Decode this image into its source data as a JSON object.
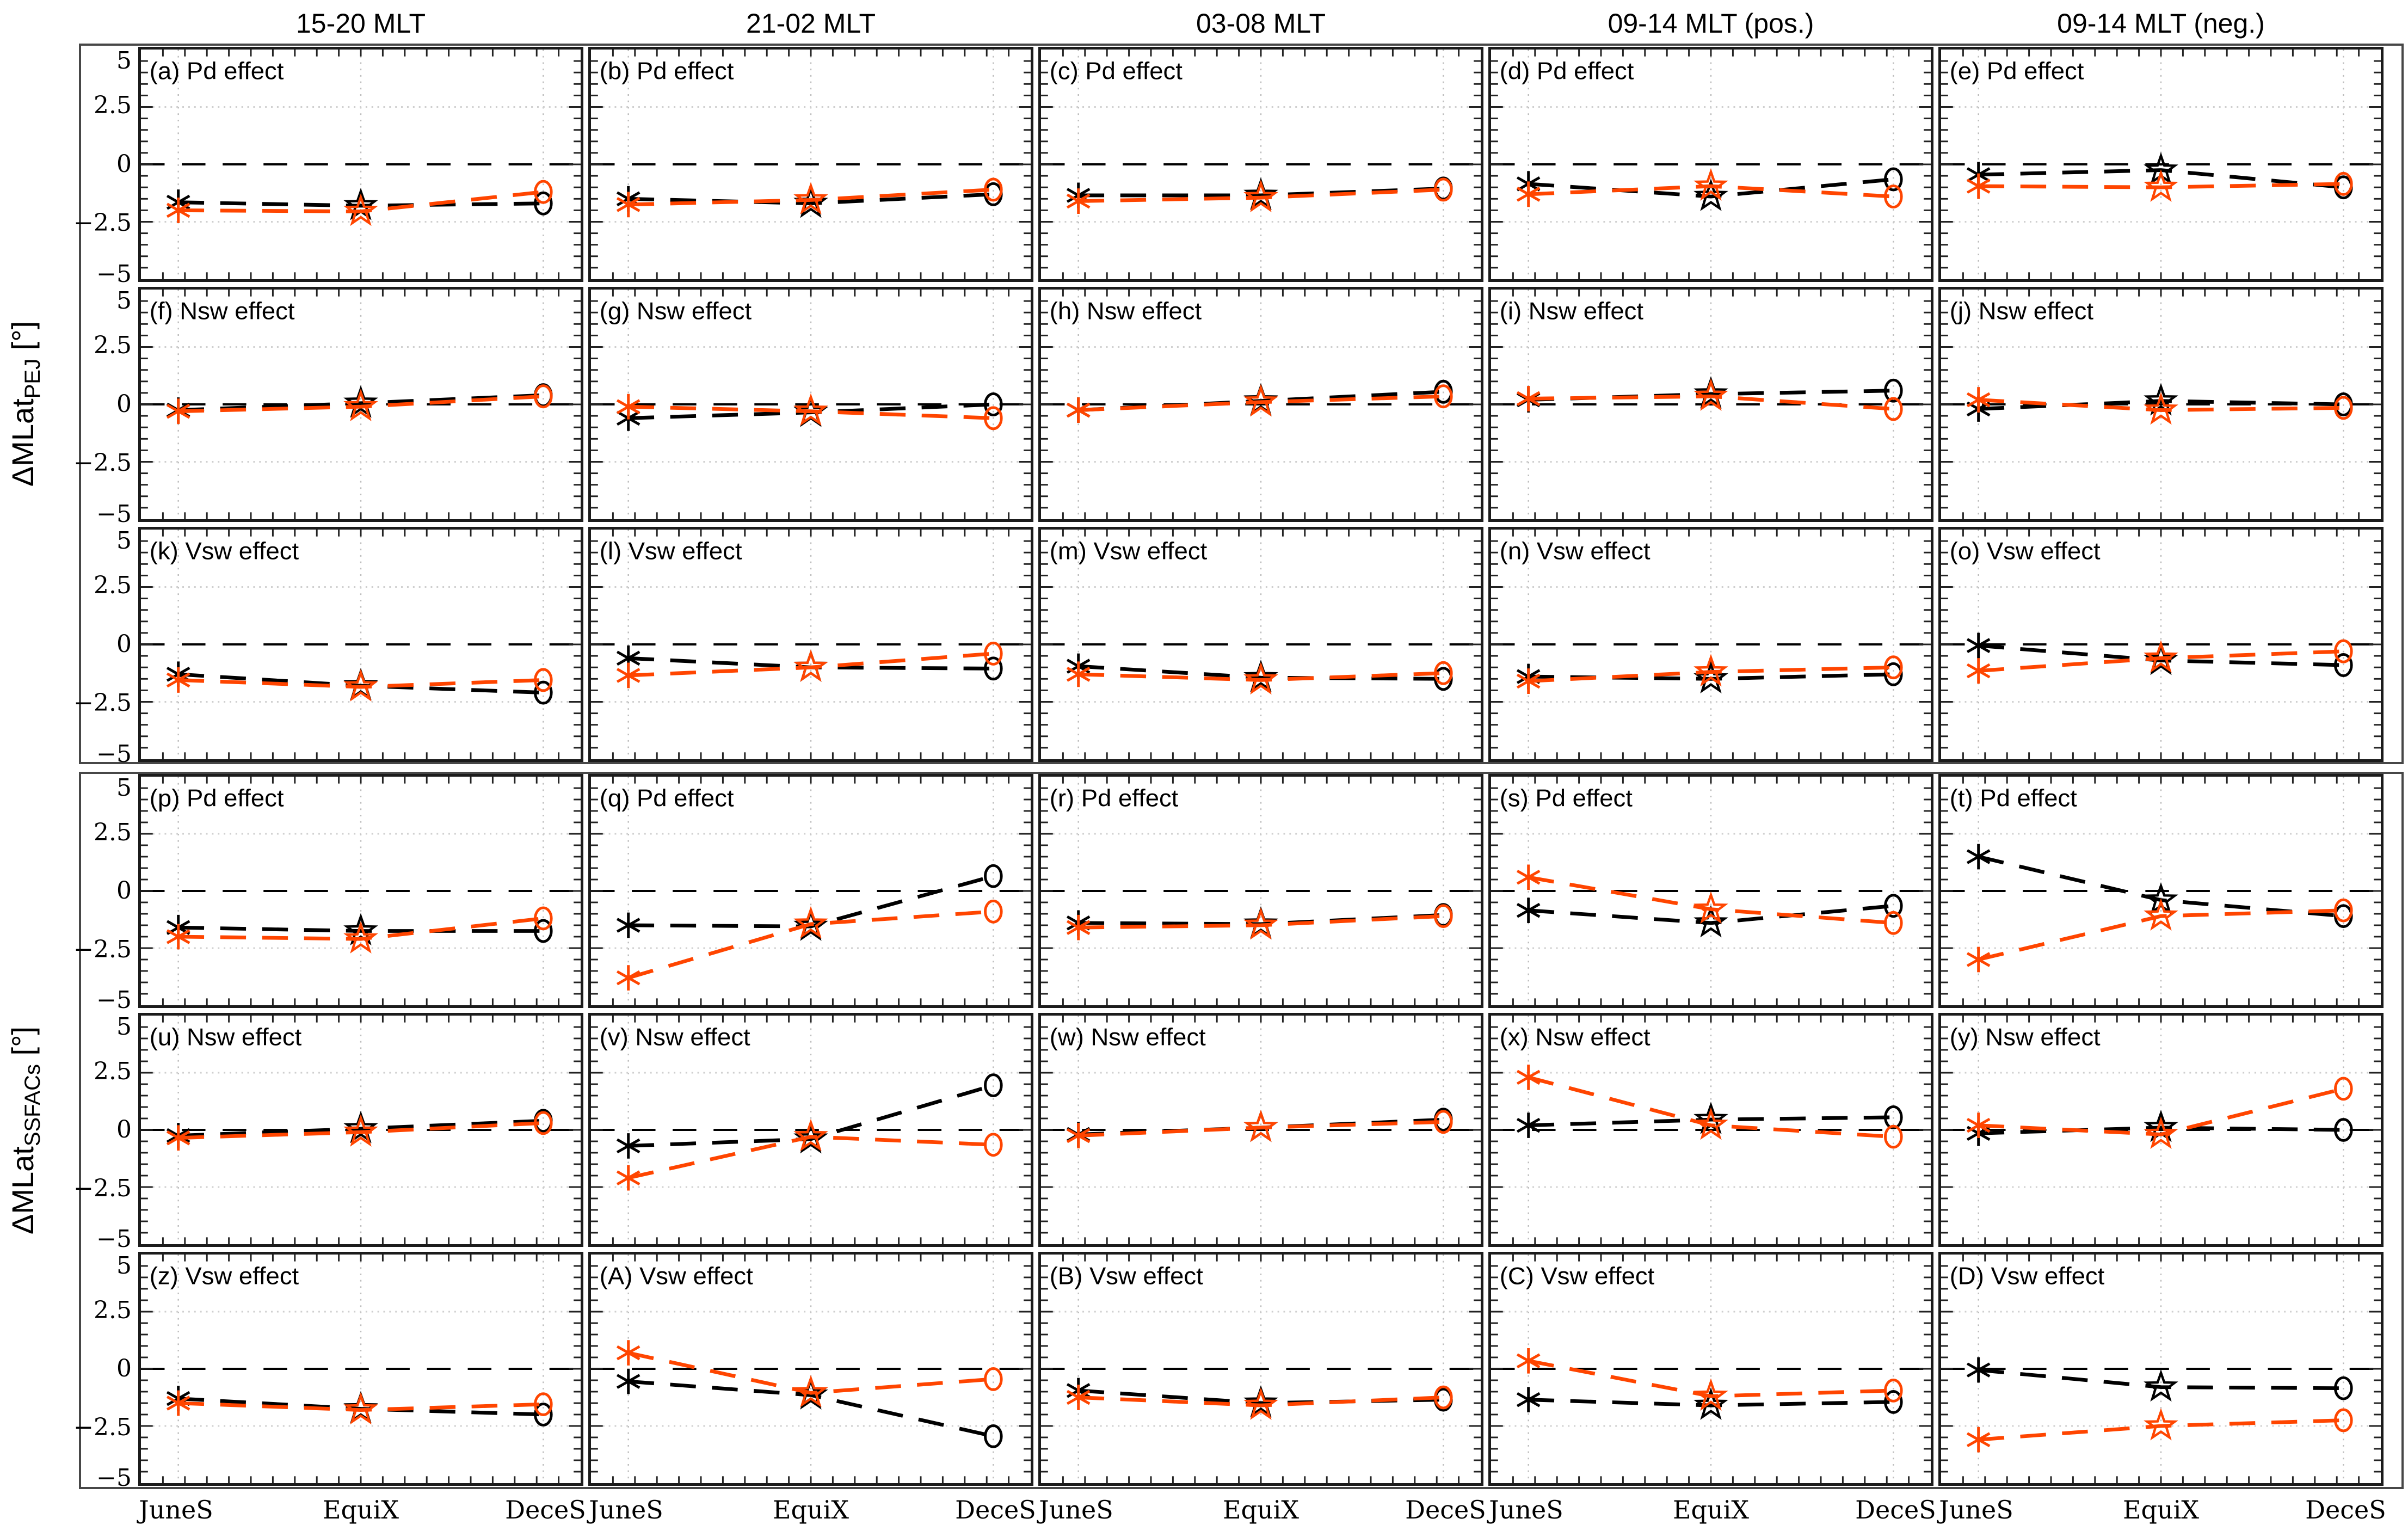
{
  "chart_data": {
    "type": "line",
    "title": "",
    "x_categories": [
      "JuneS",
      "EquiX",
      "DeceS"
    ],
    "ylim": [
      -5,
      5
    ],
    "y_tick_values": [
      5,
      2.5,
      0,
      -2.5,
      -5
    ],
    "y_tick_labels": [
      "5",
      "2.5",
      "0",
      "−2.5",
      "−5"
    ],
    "grid": {
      "vertical_dotted_at_categories": true,
      "horizontal_dotted_at": [
        2.5,
        -2.5
      ],
      "zero_dashed_line": true
    },
    "legend": {
      "shown": false
    },
    "markers": {
      "JuneS": "asterisk",
      "EquiX": "star",
      "DeceS": "circle"
    },
    "series_style": [
      {
        "name": "black",
        "color": "#000000",
        "linestyle": "dashed"
      },
      {
        "name": "orange",
        "color": "#ff4500",
        "linestyle": "dashed"
      }
    ],
    "column_titles": [
      "15-20 MLT",
      "21-02 MLT",
      "03-08 MLT",
      "09-14 MLT (pos.)",
      "09-14 MLT (neg.)"
    ],
    "blocks": [
      {
        "ylabel": {
          "main": "ΔMLat",
          "sub": "PEJ",
          "unit": " [°]"
        },
        "rows": [
          {
            "effect": "Pd effect",
            "panels": [
              {
                "label": "(a) Pd effect",
                "black": [
                  -1.65,
                  -1.8,
                  -1.7
                ],
                "orange": [
                  -2.0,
                  -2.05,
                  -1.2
                ]
              },
              {
                "label": "(b) Pd effect",
                "black": [
                  -1.5,
                  -1.7,
                  -1.3
                ],
                "orange": [
                  -1.75,
                  -1.55,
                  -1.1
                ]
              },
              {
                "label": "(c) Pd effect",
                "black": [
                  -1.35,
                  -1.35,
                  -1.05
                ],
                "orange": [
                  -1.6,
                  -1.45,
                  -1.1
                ]
              },
              {
                "label": "(d) Pd effect",
                "black": [
                  -0.85,
                  -1.4,
                  -0.65
                ],
                "orange": [
                  -1.3,
                  -0.95,
                  -1.4
                ]
              },
              {
                "label": "(e) Pd effect",
                "black": [
                  -0.45,
                  -0.25,
                  -1.0
                ],
                "orange": [
                  -0.95,
                  -1.0,
                  -0.85
                ]
              }
            ]
          },
          {
            "effect": "Nsw effect",
            "panels": [
              {
                "label": "(f) Nsw effect",
                "black": [
                  -0.25,
                  0.05,
                  0.4
                ],
                "orange": [
                  -0.3,
                  -0.1,
                  0.35
                ]
              },
              {
                "label": "(g) Nsw effect",
                "black": [
                  -0.6,
                  -0.35,
                  0.0
                ],
                "orange": [
                  -0.1,
                  -0.3,
                  -0.6
                ]
              },
              {
                "label": "(h) Nsw effect",
                "black": [
                  -0.25,
                  0.15,
                  0.55
                ],
                "orange": [
                  -0.25,
                  0.1,
                  0.35
                ]
              },
              {
                "label": "(i) Nsw effect",
                "black": [
                  0.2,
                  0.45,
                  0.6
                ],
                "orange": [
                  0.25,
                  0.35,
                  -0.2
                ]
              },
              {
                "label": "(j) Nsw effect",
                "black": [
                  -0.2,
                  0.15,
                  0.0
                ],
                "orange": [
                  0.2,
                  -0.25,
                  -0.15
                ]
              }
            ]
          },
          {
            "effect": "Vsw effect",
            "panels": [
              {
                "label": "(k) Vsw effect",
                "black": [
                  -1.3,
                  -1.8,
                  -2.1
                ],
                "orange": [
                  -1.55,
                  -1.85,
                  -1.55
                ]
              },
              {
                "label": "(l) Vsw effect",
                "black": [
                  -0.6,
                  -1.0,
                  -1.05
                ],
                "orange": [
                  -1.35,
                  -1.0,
                  -0.4
                ]
              },
              {
                "label": "(m) Vsw effect",
                "black": [
                  -0.95,
                  -1.45,
                  -1.5
                ],
                "orange": [
                  -1.3,
                  -1.55,
                  -1.25
                ]
              },
              {
                "label": "(n) Vsw effect",
                "black": [
                  -1.4,
                  -1.5,
                  -1.3
                ],
                "orange": [
                  -1.6,
                  -1.2,
                  -1.0
                ]
              },
              {
                "label": "(o) Vsw effect",
                "black": [
                  -0.05,
                  -0.7,
                  -0.9
                ],
                "orange": [
                  -1.15,
                  -0.6,
                  -0.3
                ]
              }
            ]
          }
        ]
      },
      {
        "ylabel": {
          "main": "ΔMLat",
          "sub": "SSFACs",
          "unit": " [°]"
        },
        "rows": [
          {
            "effect": "Pd effect",
            "panels": [
              {
                "label": "(p) Pd effect",
                "black": [
                  -1.6,
                  -1.75,
                  -1.75
                ],
                "orange": [
                  -2.0,
                  -2.1,
                  -1.2
                ]
              },
              {
                "label": "(q) Pd effect",
                "black": [
                  -1.5,
                  -1.55,
                  0.65
                ],
                "orange": [
                  -3.8,
                  -1.45,
                  -0.9
                ]
              },
              {
                "label": "(r) Pd effect",
                "black": [
                  -1.4,
                  -1.45,
                  -1.05
                ],
                "orange": [
                  -1.6,
                  -1.5,
                  -1.1
                ]
              },
              {
                "label": "(s) Pd effect",
                "black": [
                  -0.85,
                  -1.4,
                  -0.65
                ],
                "orange": [
                  0.6,
                  -0.8,
                  -1.4
                ]
              },
              {
                "label": "(t) Pd effect",
                "black": [
                  1.5,
                  -0.4,
                  -1.1
                ],
                "orange": [
                  -3.0,
                  -1.1,
                  -0.85
                ]
              }
            ]
          },
          {
            "effect": "Nsw effect",
            "panels": [
              {
                "label": "(u) Nsw effect",
                "black": [
                  -0.25,
                  0.05,
                  0.4
                ],
                "orange": [
                  -0.35,
                  -0.1,
                  0.3
                ]
              },
              {
                "label": "(v) Nsw effect",
                "black": [
                  -0.7,
                  -0.4,
                  1.95
                ],
                "orange": [
                  -2.1,
                  -0.3,
                  -0.65
                ]
              },
              {
                "label": "(w) Nsw effect",
                "black": [
                  -0.2,
                  0.1,
                  0.45
                ],
                "orange": [
                  -0.25,
                  0.1,
                  0.35
                ]
              },
              {
                "label": "(x) Nsw effect",
                "black": [
                  0.2,
                  0.45,
                  0.55
                ],
                "orange": [
                  2.3,
                  0.2,
                  -0.3
                ]
              },
              {
                "label": "(y) Nsw effect",
                "black": [
                  -0.15,
                  0.1,
                  0.0
                ],
                "orange": [
                  0.2,
                  -0.2,
                  1.8
                ]
              }
            ]
          },
          {
            "effect": "Vsw effect",
            "panels": [
              {
                "label": "(z) Vsw effect",
                "black": [
                  -1.3,
                  -1.75,
                  -2.0
                ],
                "orange": [
                  -1.5,
                  -1.8,
                  -1.55
                ]
              },
              {
                "label": "(A) Vsw effect",
                "black": [
                  -0.55,
                  -1.15,
                  -2.95
                ],
                "orange": [
                  0.7,
                  -1.05,
                  -0.45
                ]
              },
              {
                "label": "(B) Vsw effect",
                "black": [
                  -0.95,
                  -1.5,
                  -1.35
                ],
                "orange": [
                  -1.25,
                  -1.6,
                  -1.25
                ]
              },
              {
                "label": "(C) Vsw effect",
                "black": [
                  -1.35,
                  -1.6,
                  -1.45
                ],
                "orange": [
                  0.35,
                  -1.2,
                  -0.95
                ]
              },
              {
                "label": "(D) Vsw effect",
                "black": [
                  -0.05,
                  -0.8,
                  -0.85
                ],
                "orange": [
                  -3.1,
                  -2.5,
                  -2.25
                ]
              }
            ]
          }
        ]
      }
    ]
  }
}
